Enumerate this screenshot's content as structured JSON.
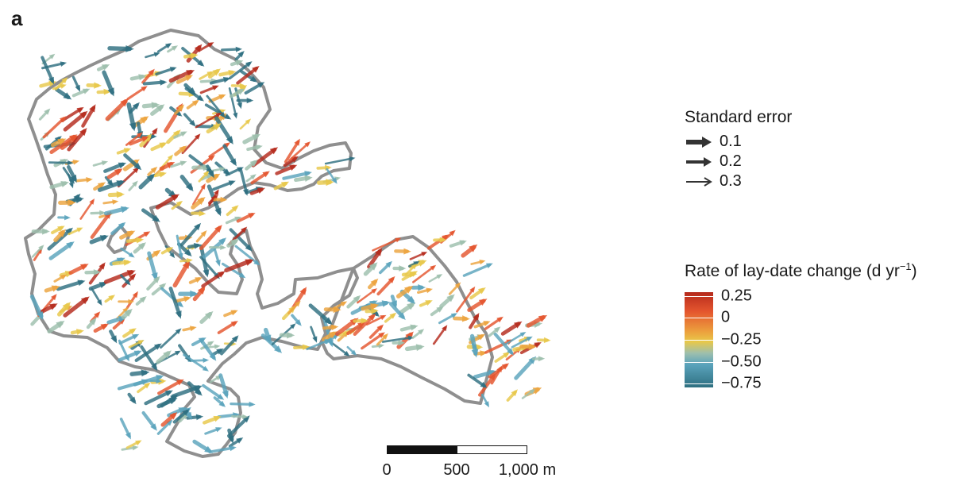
{
  "panel_label": "a",
  "map": {
    "outline_color": "#8f8f8f",
    "arrow_colors": [
      "#2e6f80",
      "#5aa3bc",
      "#9ebfad",
      "#e8c84a",
      "#eca33e",
      "#e4552e",
      "#b52a1c"
    ]
  },
  "standard_error_legend": {
    "title": "Standard error",
    "items": [
      {
        "label": "0.1",
        "icon": "arrow-thick-icon"
      },
      {
        "label": "0.2",
        "icon": "arrow-medium-icon"
      },
      {
        "label": "0.3",
        "icon": "arrow-thin-icon"
      }
    ]
  },
  "rate_legend": {
    "title_main": "Rate of lay-date change (d yr",
    "title_sup": "−1",
    "title_end": ")",
    "ticks": [
      "0.25",
      "0",
      "−0.25",
      "−0.50",
      "−0.75"
    ],
    "colors": {
      "high": "#b52a1c",
      "mid": "#e8c84a",
      "low": "#2e6f80"
    }
  },
  "scale_bar": {
    "labels": [
      "0",
      "500",
      "1,000 m"
    ]
  }
}
